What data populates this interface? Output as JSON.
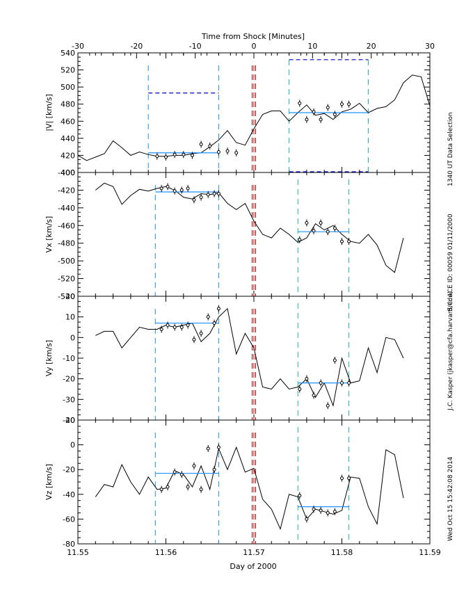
{
  "chart_data": {
    "type": "line",
    "title": "Time from Shock [Minutes]",
    "top_axis": {
      "label": "Time from Shock [Minutes]",
      "range": [
        -30,
        30
      ],
      "ticks": [
        "-30",
        "-20",
        "-10",
        "0",
        "10",
        "20",
        "30"
      ]
    },
    "x_axis": {
      "label": "Day of 2000",
      "range": [
        11.55,
        11.59
      ],
      "ticks": [
        "11.55",
        "11.56",
        "11.57",
        "11.58",
        "11.59"
      ]
    },
    "side_texts": {
      "t1": "1340 UT Data Selection",
      "t2": "S/C: ACE ID: 00059 01/11/2000",
      "t3": "J.C. Kasper (jkasper@cfa.harvard.edu)",
      "t4": "Wed Oct 15 15:42:08 2014"
    },
    "colors": {
      "trace": "#000000",
      "upstream": "#1e90ff",
      "downstream": "#20b2aa",
      "shock": "#cc0000",
      "dashed_blue": "#0000cc",
      "fit": "#1e90ff"
    },
    "shock_x": [
      11.5698,
      11.57,
      11.5702
    ],
    "panels": [
      {
        "id": "v",
        "ylabel": "|V| [km/s]",
        "ylim": [
          400,
          540
        ],
        "yticks": [
          "400",
          "420",
          "440",
          "460",
          "480",
          "500",
          "520",
          "540"
        ],
        "x": [
          11.55,
          11.551,
          11.552,
          11.553,
          11.554,
          11.555,
          11.556,
          11.557,
          11.558,
          11.559,
          11.56,
          11.561,
          11.562,
          11.563,
          11.564,
          11.565,
          11.566,
          11.567,
          11.568,
          11.569,
          11.57,
          11.571,
          11.572,
          11.573,
          11.574,
          11.575,
          11.576,
          11.577,
          11.578,
          11.579,
          11.58,
          11.581,
          11.582,
          11.583,
          11.584,
          11.585,
          11.586,
          11.587,
          11.588,
          11.589,
          11.59
        ],
        "y": [
          420,
          414,
          418,
          422,
          437,
          429,
          420,
          424,
          421,
          419,
          419,
          420,
          420,
          422,
          423,
          430,
          438,
          449,
          435,
          432,
          451,
          468,
          472,
          472,
          460,
          470,
          479,
          467,
          469,
          462,
          471,
          474,
          481,
          470,
          475,
          477,
          485,
          505,
          514,
          512,
          478
        ],
        "upstream_window": [
          11.558,
          11.566
        ],
        "downstream_window": [
          11.574,
          11.583
        ],
        "upstream_dots": [
          [
            11.559,
            419
          ],
          [
            11.56,
            418
          ],
          [
            11.561,
            421
          ],
          [
            11.562,
            421
          ],
          [
            11.563,
            420
          ],
          [
            11.564,
            433
          ],
          [
            11.565,
            431
          ],
          [
            11.566,
            424
          ],
          [
            11.567,
            425
          ],
          [
            11.568,
            423
          ]
        ],
        "downstream_dots": [
          [
            11.5752,
            481
          ],
          [
            11.576,
            462
          ],
          [
            11.5768,
            471
          ],
          [
            11.5776,
            462
          ],
          [
            11.5784,
            476
          ],
          [
            11.5792,
            468
          ],
          [
            11.58,
            480
          ],
          [
            11.5808,
            480
          ]
        ],
        "upstream_fit": 423,
        "downstream_fit": 470,
        "upstream_bar": 493,
        "downstream_bar": 532
      },
      {
        "id": "vx",
        "ylabel": "Vx [km/s]",
        "ylim": [
          -540,
          -400
        ],
        "yticks": [
          "-540",
          "-520",
          "-500",
          "-480",
          "-460",
          "-440",
          "-420",
          "-400"
        ],
        "x": [
          11.552,
          11.553,
          11.554,
          11.555,
          11.556,
          11.557,
          11.558,
          11.559,
          11.56,
          11.561,
          11.562,
          11.563,
          11.564,
          11.565,
          11.566,
          11.567,
          11.568,
          11.569,
          11.57,
          11.571,
          11.572,
          11.573,
          11.574,
          11.575,
          11.576,
          11.577,
          11.578,
          11.579,
          11.58,
          11.581,
          11.582,
          11.583,
          11.584,
          11.585,
          11.586,
          11.587
        ],
        "y": [
          -420,
          -412,
          -416,
          -436,
          -426,
          -419,
          -421,
          -418,
          -416,
          -420,
          -428,
          -430,
          -424,
          -425,
          -423,
          -435,
          -442,
          -435,
          -455,
          -470,
          -474,
          -463,
          -470,
          -479,
          -474,
          -458,
          -465,
          -460,
          -470,
          -478,
          -480,
          -470,
          -482,
          -505,
          -513,
          -474
        ],
        "upstream_window": [
          11.5588,
          11.566
        ],
        "downstream_window": [
          11.575,
          11.5808
        ],
        "upstream_dots": [
          [
            11.5595,
            -418
          ],
          [
            11.5602,
            -416
          ],
          [
            11.561,
            -421
          ],
          [
            11.5618,
            -420
          ],
          [
            11.5625,
            -418
          ],
          [
            11.5632,
            -431
          ],
          [
            11.564,
            -428
          ],
          [
            11.5648,
            -425
          ],
          [
            11.5655,
            -424
          ],
          [
            11.566,
            -424
          ]
        ],
        "downstream_dots": [
          [
            11.5752,
            -476
          ],
          [
            11.576,
            -457
          ],
          [
            11.5768,
            -466
          ],
          [
            11.5776,
            -457
          ],
          [
            11.5784,
            -467
          ],
          [
            11.5792,
            -463
          ],
          [
            11.58,
            -478
          ],
          [
            11.5808,
            -478
          ]
        ],
        "upstream_fit": -422,
        "downstream_fit": -467
      },
      {
        "id": "vy",
        "ylabel": "Vy [km/s]",
        "ylim": [
          -40,
          20
        ],
        "yticks": [
          "-40",
          "-30",
          "-20",
          "-10",
          "0",
          "10",
          "20"
        ],
        "x": [
          11.552,
          11.553,
          11.554,
          11.555,
          11.556,
          11.557,
          11.558,
          11.559,
          11.56,
          11.561,
          11.562,
          11.563,
          11.564,
          11.565,
          11.566,
          11.567,
          11.568,
          11.569,
          11.57,
          11.571,
          11.572,
          11.573,
          11.574,
          11.575,
          11.576,
          11.577,
          11.578,
          11.579,
          11.58,
          11.581,
          11.582,
          11.583,
          11.584,
          11.585,
          11.586,
          11.587
        ],
        "y": [
          1,
          3,
          3,
          -5,
          0,
          5,
          4,
          4,
          6,
          5,
          6,
          7,
          -2,
          2,
          10,
          14,
          -8,
          2,
          -5,
          -24,
          -25,
          -20,
          -25,
          -24,
          -20,
          -29,
          -22,
          -33,
          -10,
          -22,
          -21,
          -5,
          -17,
          0,
          -1,
          -10
        ],
        "upstream_window": [
          11.5588,
          11.566
        ],
        "downstream_window": [
          11.575,
          11.5808
        ],
        "upstream_dots": [
          [
            11.5595,
            4
          ],
          [
            11.5602,
            6
          ],
          [
            11.561,
            5
          ],
          [
            11.5618,
            5
          ],
          [
            11.5625,
            6
          ],
          [
            11.5632,
            -1
          ],
          [
            11.564,
            2
          ],
          [
            11.5648,
            10
          ],
          [
            11.5655,
            7
          ],
          [
            11.566,
            14
          ]
        ],
        "downstream_dots": [
          [
            11.5752,
            -25
          ],
          [
            11.576,
            -20
          ],
          [
            11.5768,
            -28
          ],
          [
            11.5776,
            -22
          ],
          [
            11.5784,
            -33
          ],
          [
            11.5792,
            -11
          ],
          [
            11.58,
            -22
          ],
          [
            11.5808,
            -22
          ]
        ],
        "upstream_fit": 7,
        "downstream_fit": -22
      },
      {
        "id": "vz",
        "ylabel": "Vz [km/s]",
        "ylim": [
          -80,
          20
        ],
        "yticks": [
          "-80",
          "-60",
          "-40",
          "-20",
          "0",
          "20"
        ],
        "x": [
          11.552,
          11.553,
          11.554,
          11.555,
          11.556,
          11.557,
          11.558,
          11.559,
          11.56,
          11.561,
          11.562,
          11.563,
          11.564,
          11.565,
          11.566,
          11.567,
          11.568,
          11.569,
          11.57,
          11.571,
          11.572,
          11.573,
          11.574,
          11.575,
          11.576,
          11.577,
          11.578,
          11.579,
          11.58,
          11.581,
          11.582,
          11.583,
          11.584,
          11.585,
          11.586,
          11.587
        ],
        "y": [
          -42,
          -32,
          -34,
          -16,
          -30,
          -40,
          -26,
          -36,
          -35,
          -21,
          -24,
          -34,
          -17,
          -36,
          -3,
          -20,
          -2,
          -22,
          -19,
          -44,
          -52,
          -68,
          -40,
          -42,
          -60,
          -52,
          -54,
          -56,
          -53,
          -26,
          -27,
          -50,
          -64,
          -4,
          -8,
          -43
        ],
        "upstream_window": [
          11.5588,
          11.566
        ],
        "downstream_window": [
          11.575,
          11.5808
        ],
        "upstream_dots": [
          [
            11.5595,
            -36
          ],
          [
            11.5602,
            -34
          ],
          [
            11.561,
            -22
          ],
          [
            11.5618,
            -24
          ],
          [
            11.5625,
            -34
          ],
          [
            11.5632,
            -17
          ],
          [
            11.564,
            -36
          ],
          [
            11.5648,
            -3
          ],
          [
            11.5655,
            -20
          ],
          [
            11.566,
            -2
          ]
        ],
        "downstream_dots": [
          [
            11.5752,
            -41
          ],
          [
            11.576,
            -60
          ],
          [
            11.5768,
            -52
          ],
          [
            11.5776,
            -53
          ],
          [
            11.5784,
            -55
          ],
          [
            11.5792,
            -54
          ],
          [
            11.58,
            -27
          ],
          [
            11.5808,
            -27
          ]
        ],
        "upstream_fit": -23,
        "downstream_fit": -50
      }
    ]
  }
}
